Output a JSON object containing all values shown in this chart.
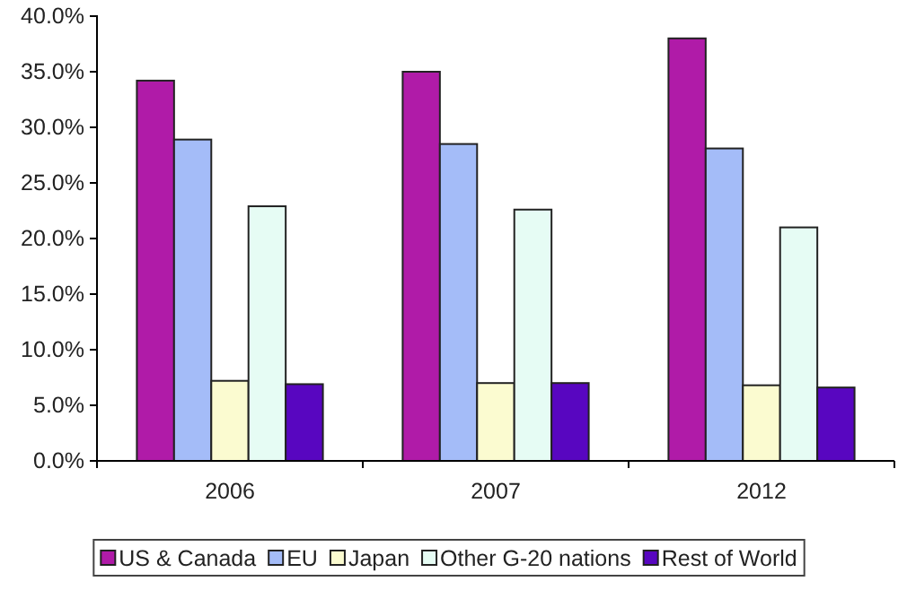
{
  "chart_data": {
    "type": "bar",
    "categories": [
      "2006",
      "2007",
      "2012"
    ],
    "series": [
      {
        "name": "US & Canada",
        "color": "#b01ba8",
        "values": [
          34.2,
          35.0,
          38.0
        ]
      },
      {
        "name": "EU",
        "color": "#a4bcf8",
        "values": [
          28.9,
          28.5,
          28.1
        ]
      },
      {
        "name": "Japan",
        "color": "#fbfbd0",
        "values": [
          7.2,
          7.0,
          6.8
        ]
      },
      {
        "name": "Other G-20 nations",
        "color": "#e6fcf4",
        "values": [
          22.9,
          22.6,
          21.0
        ]
      },
      {
        "name": "Rest of World",
        "color": "#5806c0",
        "values": [
          6.9,
          7.0,
          6.6
        ]
      }
    ],
    "ylim": [
      0,
      40
    ],
    "yticks": [
      {
        "value": 0,
        "label": "0.0%"
      },
      {
        "value": 5,
        "label": "5.0%"
      },
      {
        "value": 10,
        "label": "10.0%"
      },
      {
        "value": 15,
        "label": "15.0%"
      },
      {
        "value": 20,
        "label": "20.0%"
      },
      {
        "value": 25,
        "label": "25.0%"
      },
      {
        "value": 30,
        "label": "30.0%"
      },
      {
        "value": 35,
        "label": "35.0%"
      },
      {
        "value": 40,
        "label": "40.0%"
      }
    ],
    "legend": "bottom"
  }
}
